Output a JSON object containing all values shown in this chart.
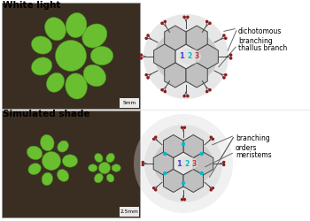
{
  "bg_color": "#ffffff",
  "title_white": "White light",
  "title_shade": "Simulated shade",
  "label_dichotomous": "dichotomous\nbranching",
  "label_thallus": "thallus branch",
  "label_branching": "branching\norders",
  "label_meristems": "meristems",
  "scale_white": "5mm",
  "scale_shade": "2.5mm",
  "dark_red": "#8B1A1A",
  "cyan": "#00BBCC",
  "blue_label": "#4444CC",
  "red_label": "#CC3333",
  "gray_outer": "#d8d8d8",
  "gray_mid": "#c0c0c0",
  "gray_inner": "#b0b0b0",
  "gray_center": "#e8e8e8",
  "line_color": "#444444",
  "photo_soil": "#3a2e22",
  "photo_green": "#6abf30",
  "photo_green_dark": "#4a9020"
}
